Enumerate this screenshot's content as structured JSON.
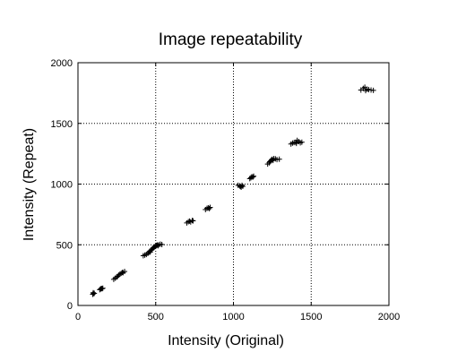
{
  "chart_data": {
    "type": "scatter",
    "title": "Image repeatability",
    "xlabel": "Intensity (Original)",
    "ylabel": "Intensity (Repeat)",
    "xlim": [
      0,
      2000
    ],
    "ylim": [
      0,
      2000
    ],
    "xticks": [
      0,
      500,
      1000,
      1500,
      2000
    ],
    "yticks": [
      0,
      500,
      1000,
      1500,
      2000
    ],
    "gridlines_x": [
      500,
      1000,
      1500
    ],
    "gridlines_y": [
      500,
      1000,
      1500
    ],
    "grid": true,
    "marker": "+",
    "marker_color": "#000000",
    "points": [
      [
        95,
        92
      ],
      [
        100,
        98
      ],
      [
        105,
        100
      ],
      [
        98,
        105
      ],
      [
        140,
        130
      ],
      [
        145,
        135
      ],
      [
        150,
        140
      ],
      [
        155,
        138
      ],
      [
        160,
        142
      ],
      [
        230,
        215
      ],
      [
        240,
        225
      ],
      [
        250,
        235
      ],
      [
        255,
        240
      ],
      [
        262,
        250
      ],
      [
        270,
        258
      ],
      [
        278,
        265
      ],
      [
        285,
        272
      ],
      [
        290,
        270
      ],
      [
        300,
        280
      ],
      [
        420,
        410
      ],
      [
        430,
        415
      ],
      [
        440,
        420
      ],
      [
        450,
        430
      ],
      [
        455,
        435
      ],
      [
        460,
        445
      ],
      [
        465,
        440
      ],
      [
        470,
        455
      ],
      [
        475,
        460
      ],
      [
        480,
        470
      ],
      [
        485,
        475
      ],
      [
        490,
        480
      ],
      [
        495,
        485
      ],
      [
        500,
        490
      ],
      [
        505,
        495
      ],
      [
        510,
        498
      ],
      [
        515,
        492
      ],
      [
        520,
        500
      ],
      [
        530,
        505
      ],
      [
        540,
        502
      ],
      [
        700,
        680
      ],
      [
        710,
        690
      ],
      [
        718,
        695
      ],
      [
        725,
        688
      ],
      [
        735,
        700
      ],
      [
        740,
        697
      ],
      [
        820,
        790
      ],
      [
        830,
        800
      ],
      [
        838,
        805
      ],
      [
        845,
        798
      ],
      [
        850,
        808
      ],
      [
        1030,
        990
      ],
      [
        1040,
        985
      ],
      [
        1045,
        980
      ],
      [
        1050,
        975
      ],
      [
        1055,
        990
      ],
      [
        1060,
        982
      ],
      [
        1105,
        1045
      ],
      [
        1112,
        1052
      ],
      [
        1118,
        1060
      ],
      [
        1125,
        1058
      ],
      [
        1130,
        1065
      ],
      [
        1220,
        1165
      ],
      [
        1230,
        1175
      ],
      [
        1235,
        1185
      ],
      [
        1240,
        1192
      ],
      [
        1245,
        1200
      ],
      [
        1250,
        1205
      ],
      [
        1255,
        1195
      ],
      [
        1260,
        1210
      ],
      [
        1270,
        1208
      ],
      [
        1280,
        1202
      ],
      [
        1295,
        1205
      ],
      [
        1370,
        1330
      ],
      [
        1380,
        1338
      ],
      [
        1390,
        1342
      ],
      [
        1400,
        1345
      ],
      [
        1405,
        1335
      ],
      [
        1410,
        1360
      ],
      [
        1420,
        1350
      ],
      [
        1430,
        1340
      ],
      [
        1440,
        1345
      ],
      [
        1820,
        1775
      ],
      [
        1835,
        1788
      ],
      [
        1845,
        1798
      ],
      [
        1850,
        1770
      ],
      [
        1860,
        1782
      ],
      [
        1870,
        1778
      ],
      [
        1885,
        1775
      ],
      [
        1900,
        1772
      ]
    ]
  }
}
